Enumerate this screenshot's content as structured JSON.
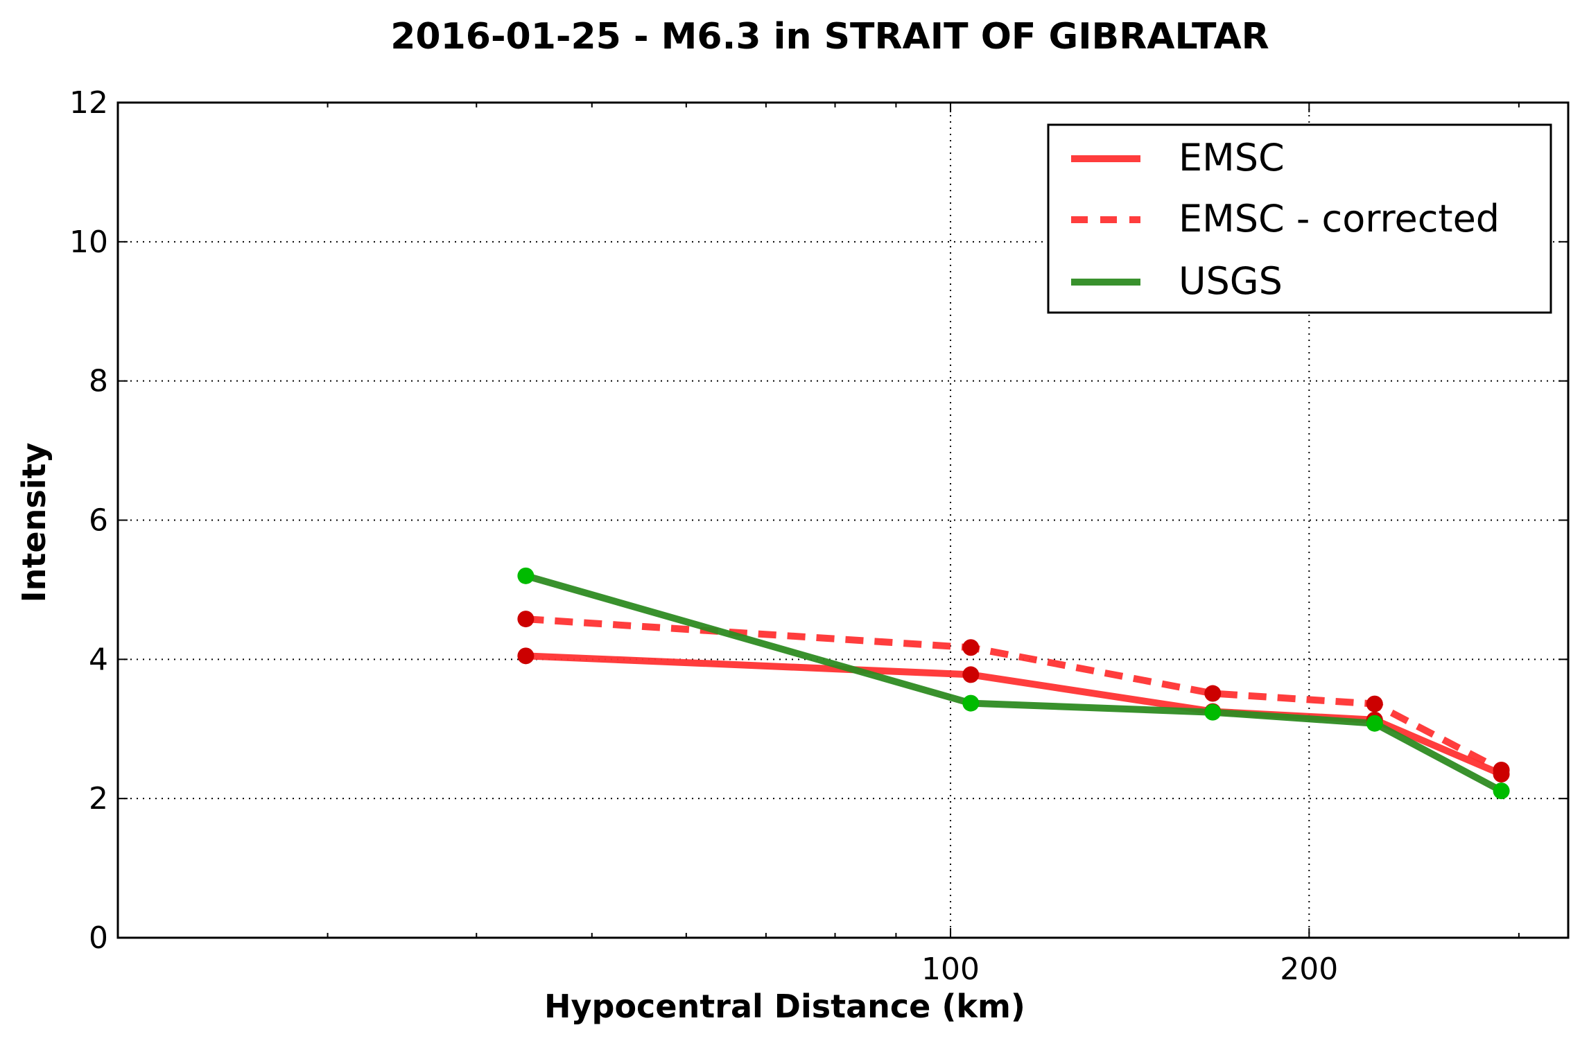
{
  "chart_data": {
    "type": "line",
    "title": "2016-01-25 - M6.3 in STRAIT OF GIBRALTAR",
    "xlabel": "Hypocentral Distance (km)",
    "ylabel": "Intensity",
    "xscale": "log",
    "xlim": [
      20,
      330
    ],
    "ylim": [
      0,
      12
    ],
    "xticks": [
      100,
      200
    ],
    "xtick_labels": [
      "100",
      "200"
    ],
    "yticks": [
      0,
      2,
      4,
      6,
      8,
      10,
      12
    ],
    "ytick_labels": [
      "0",
      "2",
      "4",
      "6",
      "8",
      "10",
      "12"
    ],
    "grid": true,
    "legend_position": "top-right",
    "series": [
      {
        "name": "EMSC",
        "style": "solid",
        "color": "#ff3333",
        "marker_color": "#cc0000",
        "x": [
          44,
          104,
          166,
          227,
          290
        ],
        "y": [
          4.05,
          3.78,
          3.25,
          3.13,
          2.35
        ]
      },
      {
        "name": "EMSC - corrected",
        "style": "dashed",
        "color": "#ff3333",
        "marker_color": "#cc0000",
        "x": [
          44,
          104,
          166,
          227,
          290
        ],
        "y": [
          4.58,
          4.17,
          3.51,
          3.36,
          2.41
        ]
      },
      {
        "name": "USGS",
        "style": "solid",
        "color": "#2e8b22",
        "marker_color": "#00bb00",
        "x": [
          44,
          104,
          166,
          227,
          290
        ],
        "y": [
          5.2,
          3.37,
          3.24,
          3.08,
          2.11
        ]
      }
    ]
  }
}
